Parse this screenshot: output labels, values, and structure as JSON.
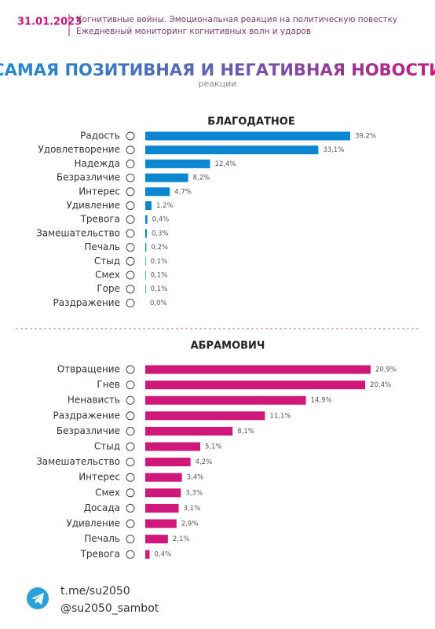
{
  "header": {
    "date": "31.01.2023",
    "line1": "Когнитивные войны. Эмоциональная реакция на политическую повестку",
    "line2": "Ежедневный мониторинг когнитивных волн и ударов"
  },
  "title": "САМАЯ ПОЗИТИВНАЯ И НЕГАТИВНАЯ НОВОСТИ",
  "subtitle": "реакции",
  "chart_data": [
    {
      "type": "bar",
      "orientation": "horizontal",
      "title": "БЛАГОДАТНОЕ",
      "color": "#0b86d1",
      "categories": [
        "Радость",
        "Удовлетворение",
        "Надежда",
        "Безразличие",
        "Интерес",
        "Удивление",
        "Тревога",
        "Замешательство",
        "Печаль",
        "Стыд",
        "Смех",
        "Горе",
        "Раздражение"
      ],
      "values": [
        39.2,
        33.1,
        12.4,
        8.2,
        4.7,
        1.2,
        0.4,
        0.3,
        0.2,
        0.1,
        0.1,
        0.1,
        0.0
      ],
      "value_labels": [
        "39,2%",
        "33,1%",
        "12,4%",
        "8,2%",
        "4,7%",
        "1,2%",
        "0,4%",
        "0,3%",
        "0,2%",
        "0,1%",
        "0,1%",
        "0,1%",
        "0,0%"
      ]
    },
    {
      "type": "bar",
      "orientation": "horizontal",
      "title": "АБРАМОВИЧ",
      "color": "#d0177a",
      "categories": [
        "Отвращение",
        "Гнев",
        "Ненависть",
        "Раздражение",
        "Безразличие",
        "Стыд",
        "Замешательство",
        "Интерес",
        "Смех",
        "Досада",
        "Удивление",
        "Печаль",
        "Тревога"
      ],
      "values": [
        20.9,
        20.4,
        14.9,
        11.1,
        8.1,
        5.1,
        4.2,
        3.4,
        3.3,
        3.1,
        2.9,
        2.1,
        0.4
      ],
      "value_labels": [
        "20,9%",
        "20,4%",
        "14,9%",
        "11,1%",
        "8,1%",
        "5,1%",
        "4,2%",
        "3,4%",
        "3,3%",
        "3,1%",
        "2,9%",
        "2,1%",
        "0,4%"
      ]
    }
  ],
  "footer": {
    "link1": "t.me/su2050",
    "link2": "@su2050_sambot"
  }
}
